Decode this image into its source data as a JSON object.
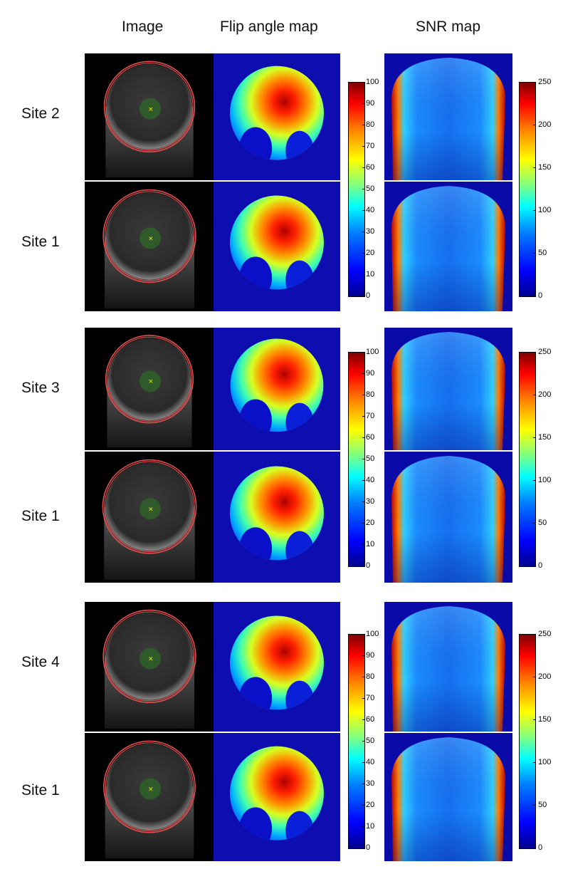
{
  "headers": {
    "image": "Image",
    "flip": "Flip angle map",
    "snr": "SNR map"
  },
  "rows": [
    {
      "site": "Site 2"
    },
    {
      "site": "Site 1"
    },
    {
      "site": "Site 3"
    },
    {
      "site": "Site 1"
    },
    {
      "site": "Site 4"
    },
    {
      "site": "Site 1"
    }
  ],
  "flip_colorbar": {
    "ticks": [
      "100",
      "90",
      "80",
      "70",
      "60",
      "50",
      "40",
      "30",
      "20",
      "10",
      "0"
    ]
  },
  "snr_colorbar": {
    "ticks": [
      "250",
      "200",
      "150",
      "100",
      "50",
      "0"
    ]
  },
  "colors": {
    "ring": "#e05050",
    "roi": "#2f5a2a",
    "marker": "#f0f000",
    "background": "#0d0db0"
  }
}
